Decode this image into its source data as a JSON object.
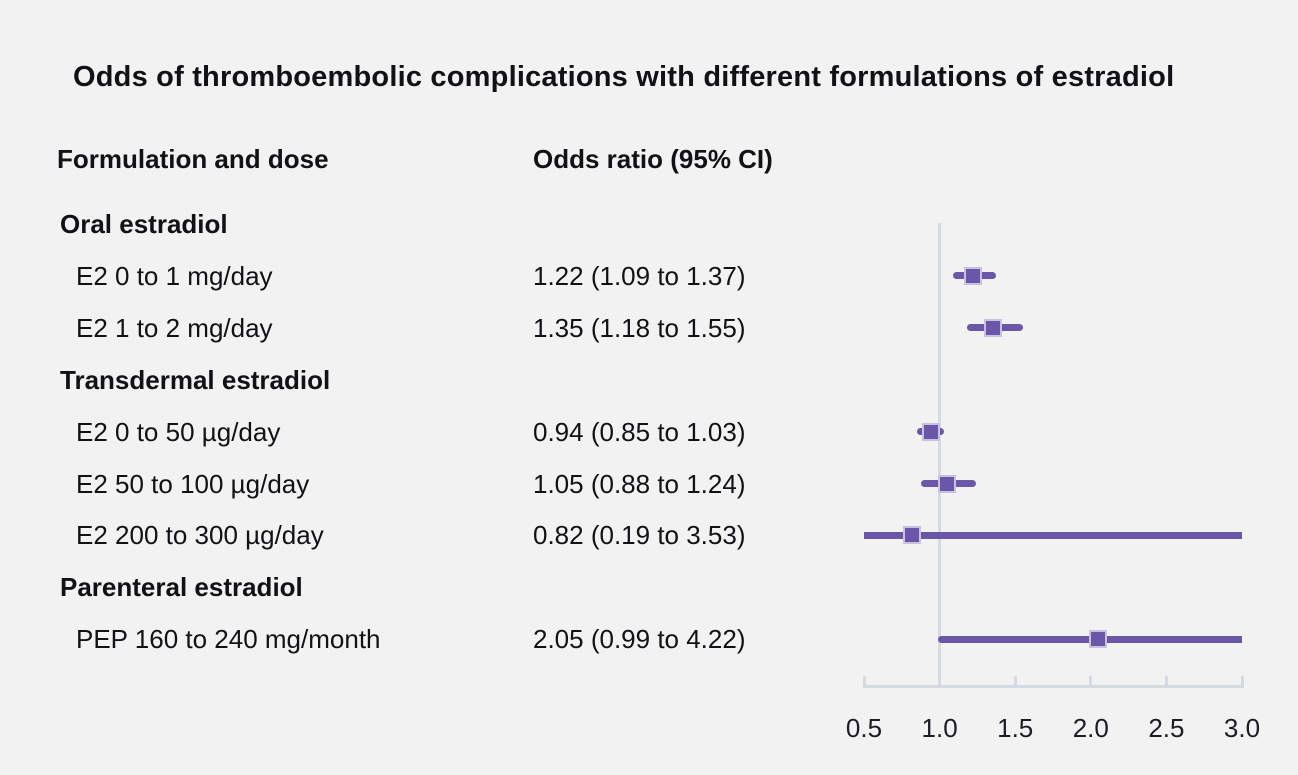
{
  "title": "Odds of thromboembolic complications with different formulations of estradiol",
  "columns": {
    "formulation": "Formulation and dose",
    "odds_ratio": "Odds ratio (95% CI)"
  },
  "chart_data": {
    "type": "forest-plot",
    "xlim": [
      0.5,
      3.0
    ],
    "reference_line": 1.0,
    "grid": "off",
    "x_ticks": [
      {
        "value": 0.5,
        "label": "0.5"
      },
      {
        "value": 1.0,
        "label": "1.0"
      },
      {
        "value": 1.5,
        "label": "1.5"
      },
      {
        "value": 2.0,
        "label": "2.0"
      },
      {
        "value": 2.5,
        "label": "2.5"
      },
      {
        "value": 3.0,
        "label": "3.0"
      }
    ],
    "rows": [
      {
        "type": "group",
        "label": "Oral estradiol"
      },
      {
        "type": "item",
        "label": "E2 0 to 1 mg/day",
        "or_text": "1.22 (1.09 to 1.37)",
        "est": 1.22,
        "lo": 1.09,
        "hi": 1.37
      },
      {
        "type": "item",
        "label": "E2 1 to 2 mg/day",
        "or_text": "1.35 (1.18 to 1.55)",
        "est": 1.35,
        "lo": 1.18,
        "hi": 1.55
      },
      {
        "type": "group",
        "label": "Transdermal estradiol"
      },
      {
        "type": "item",
        "label": "E2 0 to 50 µg/day",
        "or_text": "0.94 (0.85 to 1.03)",
        "est": 0.94,
        "lo": 0.85,
        "hi": 1.03
      },
      {
        "type": "item",
        "label": "E2 50 to 100 µg/day",
        "or_text": "1.05 (0.88 to 1.24)",
        "est": 1.05,
        "lo": 0.88,
        "hi": 1.24
      },
      {
        "type": "item",
        "label": "E2 200 to 300 µg/day",
        "or_text": "0.82 (0.19 to 3.53)",
        "est": 0.82,
        "lo": 0.19,
        "hi": 3.53
      },
      {
        "type": "group",
        "label": "Parenteral estradiol"
      },
      {
        "type": "item",
        "label": "PEP 160 to 240 mg/month",
        "or_text": "2.05 (0.99 to 4.22)",
        "est": 2.05,
        "lo": 0.99,
        "hi": 4.22
      }
    ],
    "colors": {
      "background": "#f2f2f2",
      "text": "#111116",
      "marker": "#6b57a7",
      "marker_border": "#c9c0e2",
      "ci_line": "#6b57a7",
      "axis": "#d5d9e1"
    }
  }
}
